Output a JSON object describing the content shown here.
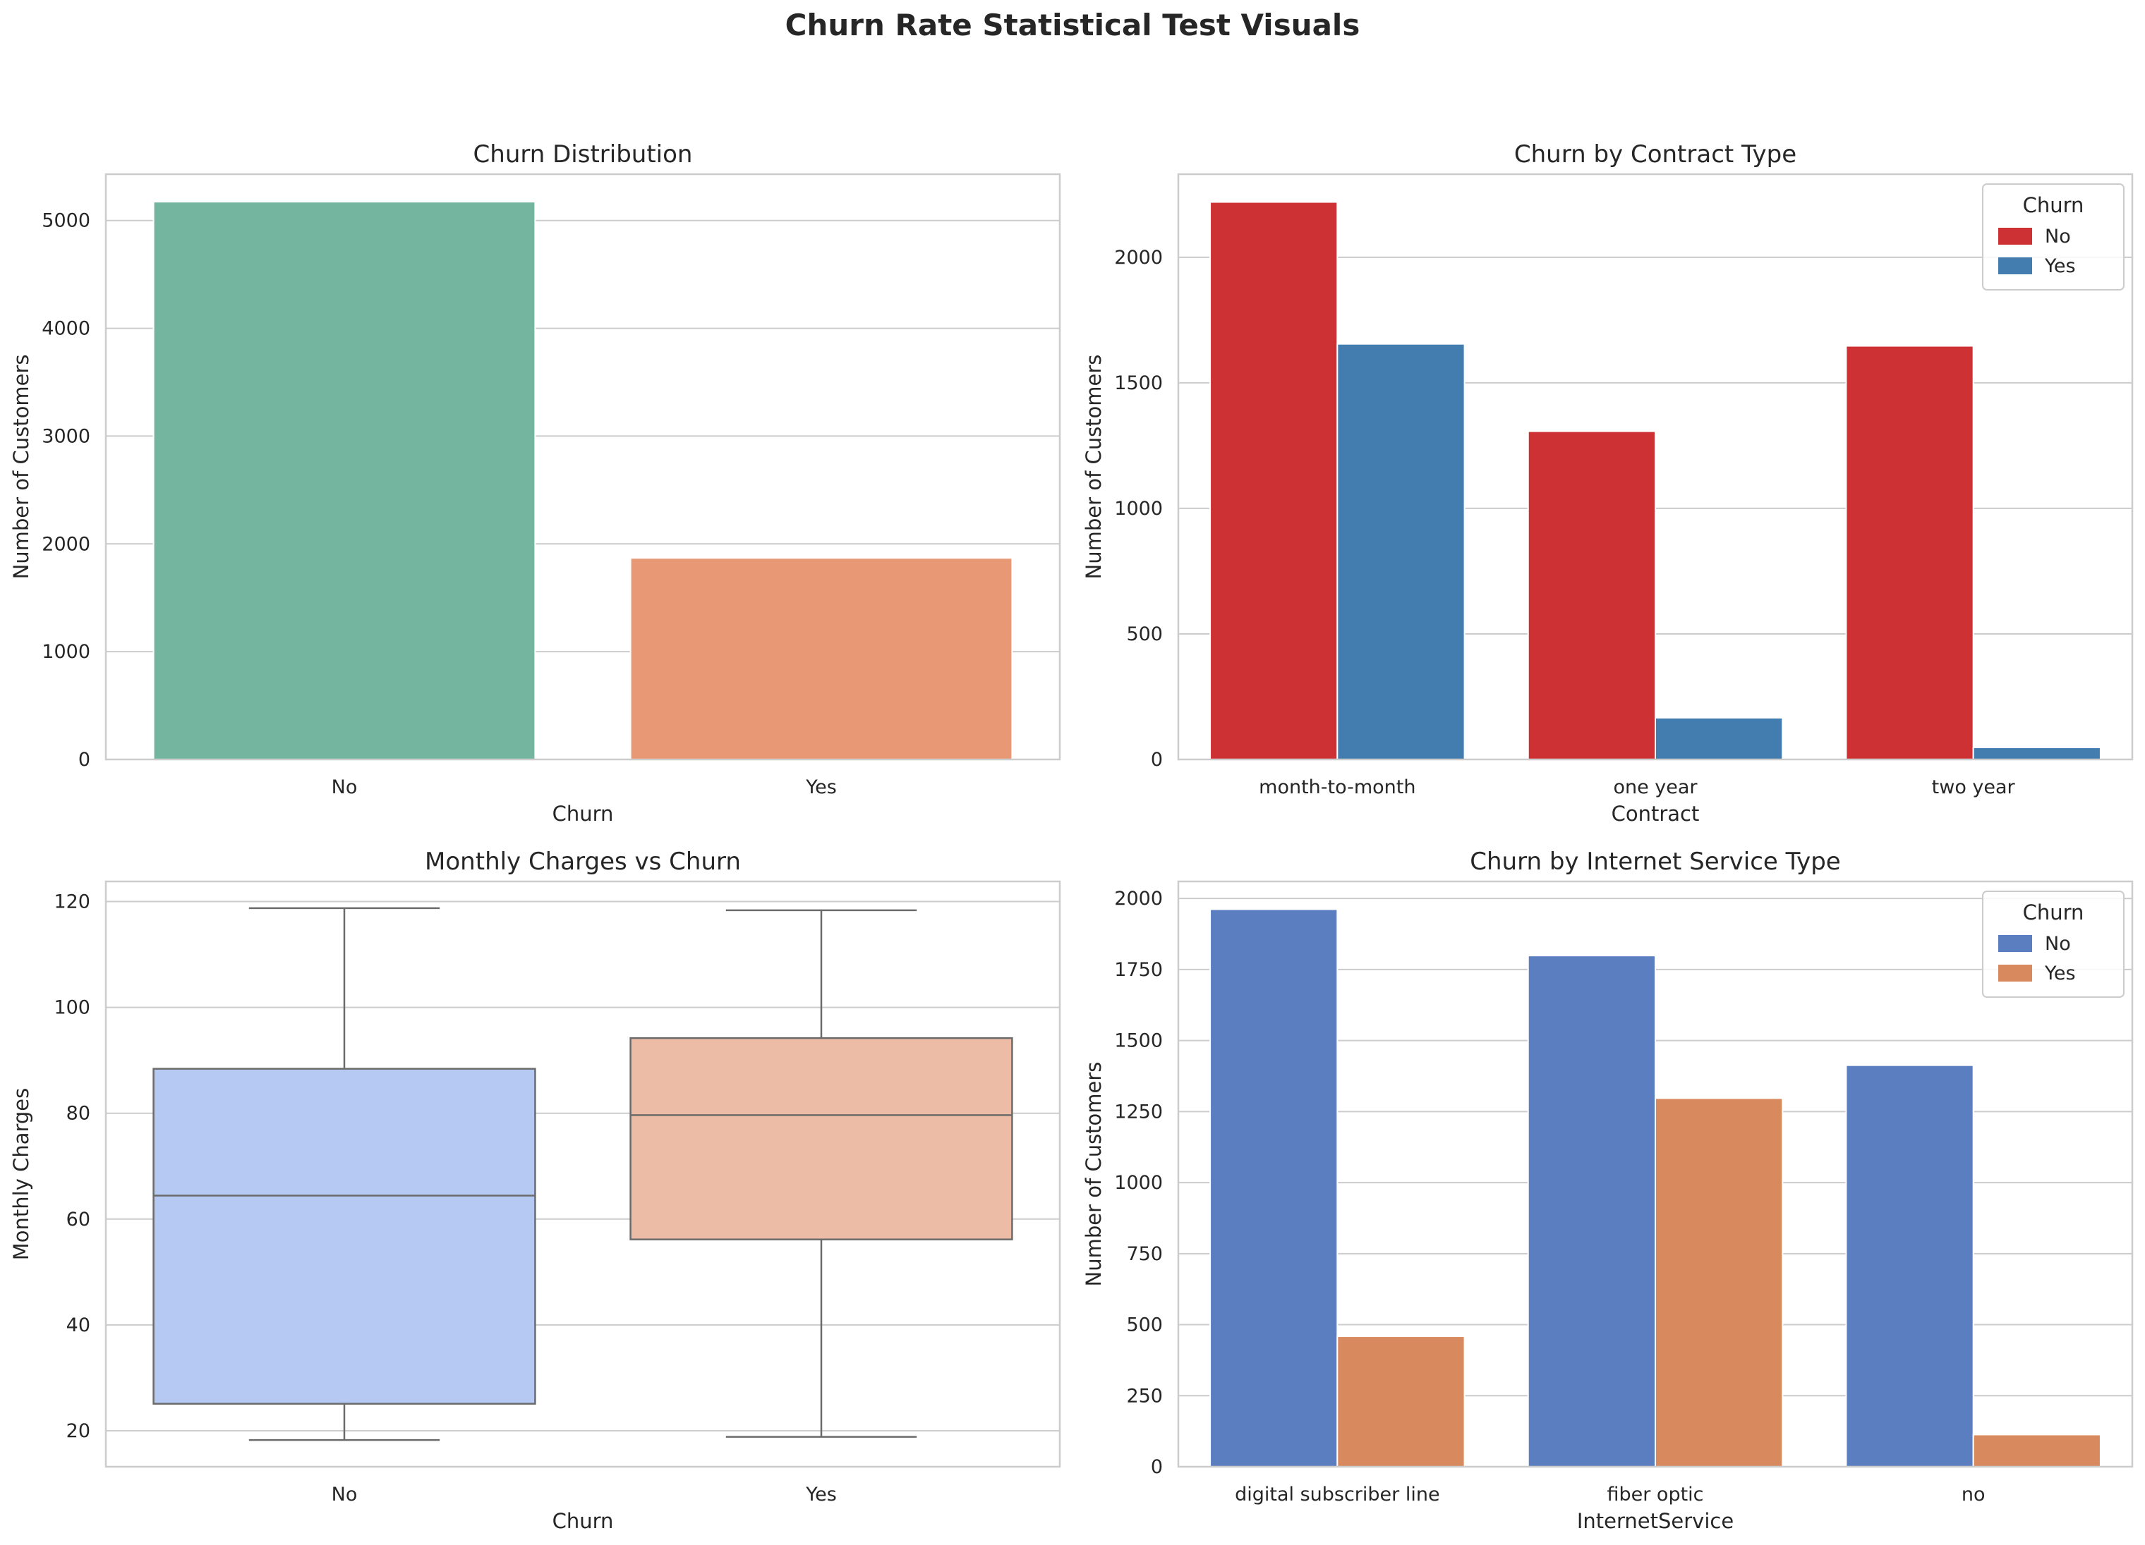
{
  "figure": {
    "title": "Churn Rate Statistical Test Visuals"
  },
  "chart_data": [
    {
      "type": "bar",
      "title": "Churn Distribution",
      "xlabel": "Churn",
      "ylabel": "Number of Customers",
      "categories": [
        "No",
        "Yes"
      ],
      "values": [
        5174,
        1869
      ],
      "colors": [
        "#73b59f",
        "#e99875"
      ],
      "ylim": [
        0,
        5430
      ],
      "yticks": [
        0,
        1000,
        2000,
        3000,
        4000,
        5000
      ],
      "grid": true
    },
    {
      "type": "bar",
      "title": "Churn by Contract Type",
      "xlabel": "Contract",
      "ylabel": "Number of Customers",
      "categories": [
        "month-to-month",
        "one year",
        "two year"
      ],
      "series": [
        {
          "name": "No",
          "values": [
            2220,
            1307,
            1647
          ],
          "color": "#cd3134"
        },
        {
          "name": "Yes",
          "values": [
            1655,
            166,
            48
          ],
          "color": "#437cae"
        }
      ],
      "ylim": [
        0,
        2331
      ],
      "yticks": [
        0,
        500,
        1000,
        1500,
        2000
      ],
      "legend": {
        "title": "Churn",
        "position": "upper-right"
      },
      "grid": true
    },
    {
      "type": "box",
      "title": "Monthly Charges vs Churn",
      "xlabel": "Churn",
      "ylabel": "Monthly Charges",
      "categories": [
        "No",
        "Yes"
      ],
      "boxes": [
        {
          "min": 18.25,
          "q1": 25.1,
          "median": 64.43,
          "q3": 88.4,
          "max": 118.75,
          "color": "#b6c9f3"
        },
        {
          "min": 18.85,
          "q1": 56.15,
          "median": 79.65,
          "q3": 94.2,
          "max": 118.35,
          "color": "#ecbca6"
        }
      ],
      "ylim": [
        13.2,
        123.8
      ],
      "yticks": [
        20,
        40,
        60,
        80,
        100,
        120
      ],
      "grid": true
    },
    {
      "type": "bar",
      "title": "Churn by Internet Service Type",
      "xlabel": "InternetService",
      "ylabel": "Number of Customers",
      "categories": [
        "digital subscriber line",
        "fiber optic",
        "no"
      ],
      "series": [
        {
          "name": "No",
          "values": [
            1962,
            1799,
            1413
          ],
          "color": "#5b7ec0"
        },
        {
          "name": "Yes",
          "values": [
            459,
            1297,
            113
          ],
          "color": "#d88a5e"
        }
      ],
      "ylim": [
        0,
        2060
      ],
      "yticks": [
        0,
        250,
        500,
        750,
        1000,
        1250,
        1500,
        1750,
        2000
      ],
      "legend": {
        "title": "Churn",
        "position": "upper-right"
      },
      "grid": true
    }
  ]
}
